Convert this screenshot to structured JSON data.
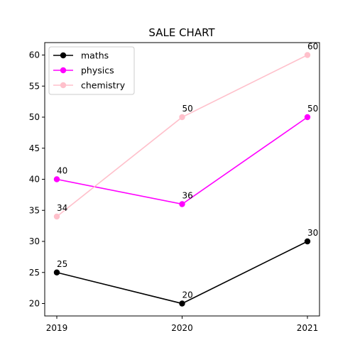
{
  "chart_data": {
    "type": "line",
    "title": "SALE CHART",
    "xlabel": "",
    "ylabel": "",
    "categories": [
      "2019",
      "2020",
      "2021"
    ],
    "ylim": [
      18,
      62
    ],
    "yticks": [
      20,
      25,
      30,
      35,
      40,
      45,
      50,
      55,
      60
    ],
    "grid": false,
    "legend_position": "top-left",
    "series": [
      {
        "name": "maths",
        "values": [
          25,
          20,
          30
        ],
        "color": "#000000"
      },
      {
        "name": "physics",
        "values": [
          40,
          36,
          50
        ],
        "color": "#ff00ff"
      },
      {
        "name": "chemistry",
        "values": [
          34,
          50,
          60
        ],
        "color": "#ffc0cb"
      }
    ]
  }
}
